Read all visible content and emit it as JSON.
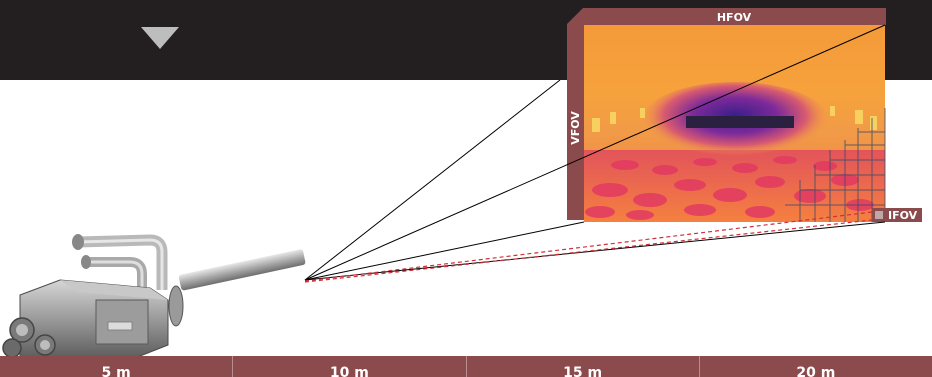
{
  "labels": {
    "hfov": "HFOV",
    "vfov": "VFOV",
    "ifov": "IFOV"
  },
  "scale": [
    "5 m",
    "10 m",
    "15 m",
    "20 m"
  ],
  "icons": {
    "banner_marker": "down-triangle-icon",
    "camera": "thermal-camera-icon"
  },
  "colors": {
    "banner": "#231f20",
    "frame": "#8b4a4c",
    "ifov_dash": "#d0303a"
  }
}
